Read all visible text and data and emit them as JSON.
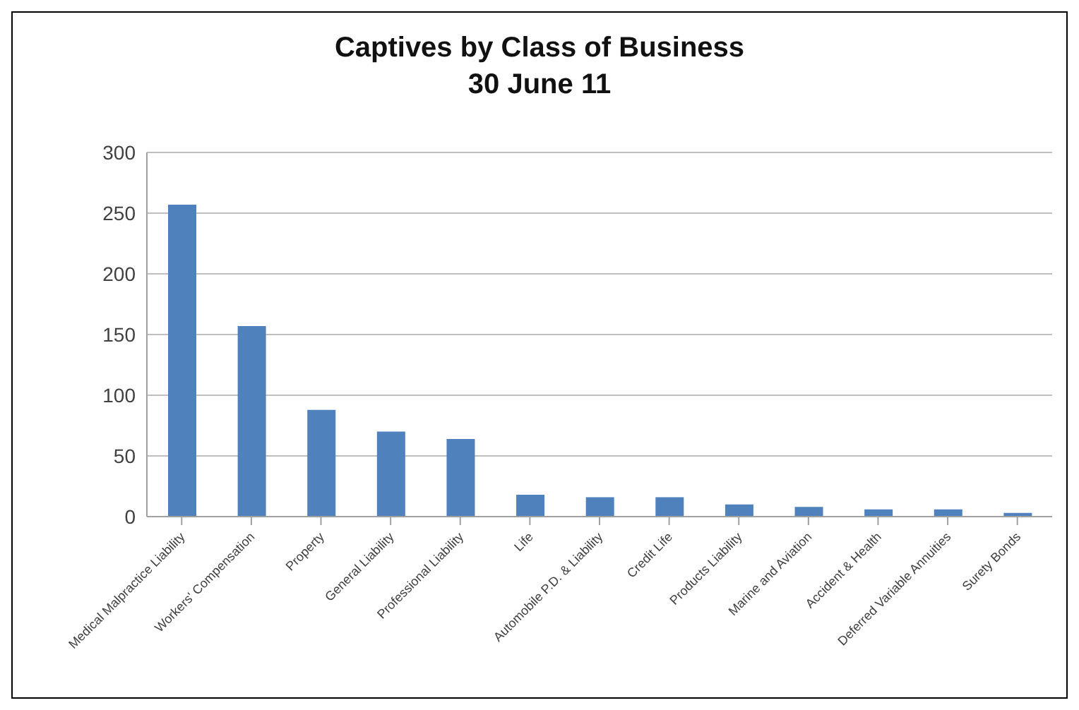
{
  "chart_data": {
    "type": "bar",
    "title": "Captives by Class of Business",
    "subtitle": "30 June 11",
    "categories": [
      "Medical Malpractice Liability",
      "Workers' Compensation",
      "Property",
      "General Liability",
      "Professional Liability",
      "Life",
      "Automobile P.D. & Liability",
      "Credit Life",
      "Products Liability",
      "Marine and Aviation",
      "Accident & Health",
      "Deferred Variable Annuities",
      "Surety Bonds"
    ],
    "values": [
      257,
      157,
      88,
      70,
      64,
      18,
      16,
      16,
      10,
      8,
      6,
      6,
      3
    ],
    "color": "#4f81bd",
    "ylim": [
      0,
      300
    ],
    "yticks": [
      0,
      50,
      100,
      150,
      200,
      250,
      300
    ],
    "grid": "y",
    "legend": false
  }
}
